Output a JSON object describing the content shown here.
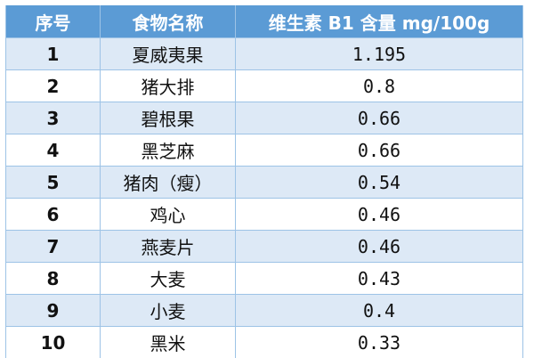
{
  "header": {
    "index": "序号",
    "food": "食物名称",
    "value": "维生素 B1 含量 mg/100g"
  },
  "colors": {
    "header_bg": "#5b9bd5",
    "stripe": "#dde9f6"
  },
  "rows": [
    {
      "index": "1",
      "food": "夏威夷果",
      "value": "1.195"
    },
    {
      "index": "2",
      "food": "猪大排",
      "value": "0.8"
    },
    {
      "index": "3",
      "food": "碧根果",
      "value": "0.66"
    },
    {
      "index": "4",
      "food": "黑芝麻",
      "value": "0.66"
    },
    {
      "index": "5",
      "food": "猪肉（瘦）",
      "value": "0.54"
    },
    {
      "index": "6",
      "food": "鸡心",
      "value": "0.46"
    },
    {
      "index": "7",
      "food": "燕麦片",
      "value": "0.46"
    },
    {
      "index": "8",
      "food": "大麦",
      "value": "0.43"
    },
    {
      "index": "9",
      "food": "小麦",
      "value": "0.4"
    },
    {
      "index": "10",
      "food": "黑米",
      "value": "0.33"
    }
  ]
}
